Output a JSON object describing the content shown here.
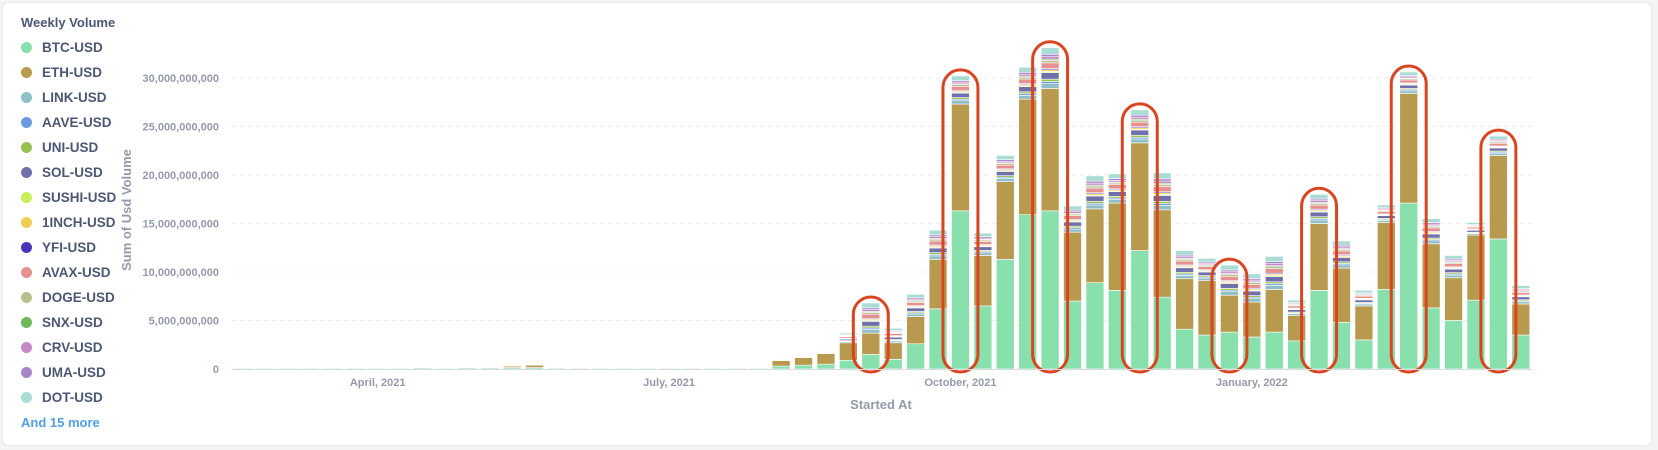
{
  "legend": {
    "title": "Weekly Volume",
    "more_label": "And 15 more"
  },
  "chart_data": {
    "type": "bar",
    "stacked": true,
    "title": "Weekly Volume",
    "xlabel": "Started At",
    "ylabel": "Sum of Usd Volume",
    "ylim": [
      0,
      30000000000
    ],
    "yticks": [
      0,
      5000000000,
      10000000000,
      15000000000,
      20000000000,
      25000000000,
      30000000000
    ],
    "ytick_labels": [
      "0",
      "5,000,000,000",
      "10,000,000,000",
      "15,000,000,000",
      "20,000,000,000",
      "25,000,000,000",
      "30,000,000,000"
    ],
    "xtick_labels": [
      {
        "label": "April, 2021",
        "week_index": 6
      },
      {
        "label": "July, 2021",
        "week_index": 19
      },
      {
        "label": "October, 2021",
        "week_index": 32
      },
      {
        "label": "January, 2022",
        "week_index": 45
      }
    ],
    "grid": true,
    "legend_position": "left",
    "series": [
      {
        "name": "BTC-USD",
        "color": "#88e0ac"
      },
      {
        "name": "ETH-USD",
        "color": "#b79a4e"
      },
      {
        "name": "LINK-USD",
        "color": "#8fc0c8"
      },
      {
        "name": "AAVE-USD",
        "color": "#6a9be0"
      },
      {
        "name": "UNI-USD",
        "color": "#98c04e"
      },
      {
        "name": "SOL-USD",
        "color": "#7070ad"
      },
      {
        "name": "SUSHI-USD",
        "color": "#c9ef5a"
      },
      {
        "name": "1INCH-USD",
        "color": "#f2cc55"
      },
      {
        "name": "YFI-USD",
        "color": "#4a35b8"
      },
      {
        "name": "AVAX-USD",
        "color": "#e69090"
      },
      {
        "name": "DOGE-USD",
        "color": "#b8c18e"
      },
      {
        "name": "SNX-USD",
        "color": "#6fb85a"
      },
      {
        "name": "CRV-USD",
        "color": "#c788c8"
      },
      {
        "name": "UMA-USD",
        "color": "#a685c9"
      },
      {
        "name": "DOT-USD",
        "color": "#a8dcd5"
      }
    ],
    "weeks": [
      {
        "btc": 0.1,
        "eth": 0.05,
        "other": 0.02
      },
      {
        "btc": 0.1,
        "eth": 0.05,
        "other": 0.02
      },
      {
        "btc": 0.1,
        "eth": 0.05,
        "other": 0.02
      },
      {
        "btc": 0.1,
        "eth": 0.05,
        "other": 0.02
      },
      {
        "btc": 0.1,
        "eth": 0.05,
        "other": 0.02
      },
      {
        "btc": 0.1,
        "eth": 0.05,
        "other": 0.02
      },
      {
        "btc": 0.1,
        "eth": 0.05,
        "other": 0.02
      },
      {
        "btc": 0.1,
        "eth": 0.05,
        "other": 0.02
      },
      {
        "btc": 0.12,
        "eth": 0.06,
        "other": 0.02
      },
      {
        "btc": 0.1,
        "eth": 0.05,
        "other": 0.02
      },
      {
        "btc": 0.12,
        "eth": 0.06,
        "other": 0.04
      },
      {
        "btc": 0.12,
        "eth": 0.1,
        "other": 0.04
      },
      {
        "btc": 0.15,
        "eth": 0.2,
        "other": 0.05
      },
      {
        "btc": 0.15,
        "eth": 0.3,
        "other": 0.05
      },
      {
        "btc": 0.1,
        "eth": 0.1,
        "other": 0.03
      },
      {
        "btc": 0.08,
        "eth": 0.05,
        "other": 0.02
      },
      {
        "btc": 0.08,
        "eth": 0.05,
        "other": 0.02
      },
      {
        "btc": 0.08,
        "eth": 0.05,
        "other": 0.02
      },
      {
        "btc": 0.08,
        "eth": 0.12,
        "other": 0.02
      },
      {
        "btc": 0.08,
        "eth": 0.05,
        "other": 0.02
      },
      {
        "btc": 0.08,
        "eth": 0.05,
        "other": 0.02
      },
      {
        "btc": 0.08,
        "eth": 0.05,
        "other": 0.02
      },
      {
        "btc": 0.08,
        "eth": 0.05,
        "other": 0.02
      },
      {
        "btc": 0.1,
        "eth": 0.06,
        "other": 0.04
      },
      {
        "btc": 0.3,
        "eth": 0.6,
        "other": 0.1
      },
      {
        "btc": 0.4,
        "eth": 0.8,
        "other": 0.25
      },
      {
        "btc": 0.5,
        "eth": 1.1,
        "other": 0.4
      },
      {
        "btc": 0.9,
        "eth": 1.8,
        "other": 1.0
      },
      {
        "btc": 1.5,
        "eth": 2.2,
        "other": 3.1
      },
      {
        "btc": 1.0,
        "eth": 1.7,
        "other": 1.5
      },
      {
        "btc": 2.6,
        "eth": 2.8,
        "other": 2.3
      },
      {
        "btc": 6.2,
        "eth": 5.1,
        "other": 3.0
      },
      {
        "btc": 16.3,
        "eth": 11.0,
        "other": 2.9
      },
      {
        "btc": 6.5,
        "eth": 5.2,
        "other": 2.3
      },
      {
        "btc": 11.3,
        "eth": 8.0,
        "other": 2.7
      },
      {
        "btc": 15.9,
        "eth": 11.9,
        "other": 3.3
      },
      {
        "btc": 16.3,
        "eth": 12.6,
        "other": 4.2
      },
      {
        "btc": 7.0,
        "eth": 7.1,
        "other": 2.7
      },
      {
        "btc": 8.9,
        "eth": 7.6,
        "other": 3.4
      },
      {
        "btc": 8.1,
        "eth": 9.0,
        "other": 3.0
      },
      {
        "btc": 12.2,
        "eth": 11.1,
        "other": 3.4
      },
      {
        "btc": 7.4,
        "eth": 9.0,
        "other": 3.8
      },
      {
        "btc": 4.1,
        "eth": 5.2,
        "other": 2.9
      },
      {
        "btc": 3.5,
        "eth": 5.6,
        "other": 2.3
      },
      {
        "btc": 3.8,
        "eth": 3.8,
        "other": 3.1
      },
      {
        "btc": 3.3,
        "eth": 3.6,
        "other": 2.9
      },
      {
        "btc": 3.8,
        "eth": 4.4,
        "other": 3.4
      },
      {
        "btc": 2.9,
        "eth": 2.6,
        "other": 1.6
      },
      {
        "btc": 8.1,
        "eth": 6.9,
        "other": 3.0
      },
      {
        "btc": 4.8,
        "eth": 5.6,
        "other": 2.8
      },
      {
        "btc": 3.0,
        "eth": 3.5,
        "other": 1.6
      },
      {
        "btc": 8.2,
        "eth": 6.9,
        "other": 1.8
      },
      {
        "btc": 17.1,
        "eth": 11.3,
        "other": 2.2
      },
      {
        "btc": 6.3,
        "eth": 6.6,
        "other": 2.6
      },
      {
        "btc": 5.0,
        "eth": 4.4,
        "other": 2.3
      },
      {
        "btc": 7.1,
        "eth": 6.7,
        "other": 1.3
      },
      {
        "btc": 13.4,
        "eth": 8.6,
        "other": 2.0
      },
      {
        "btc": 3.5,
        "eth": 3.2,
        "other": 1.9
      }
    ],
    "highlighted_weeks": [
      28,
      32,
      36,
      40,
      44,
      48,
      52,
      56
    ]
  }
}
